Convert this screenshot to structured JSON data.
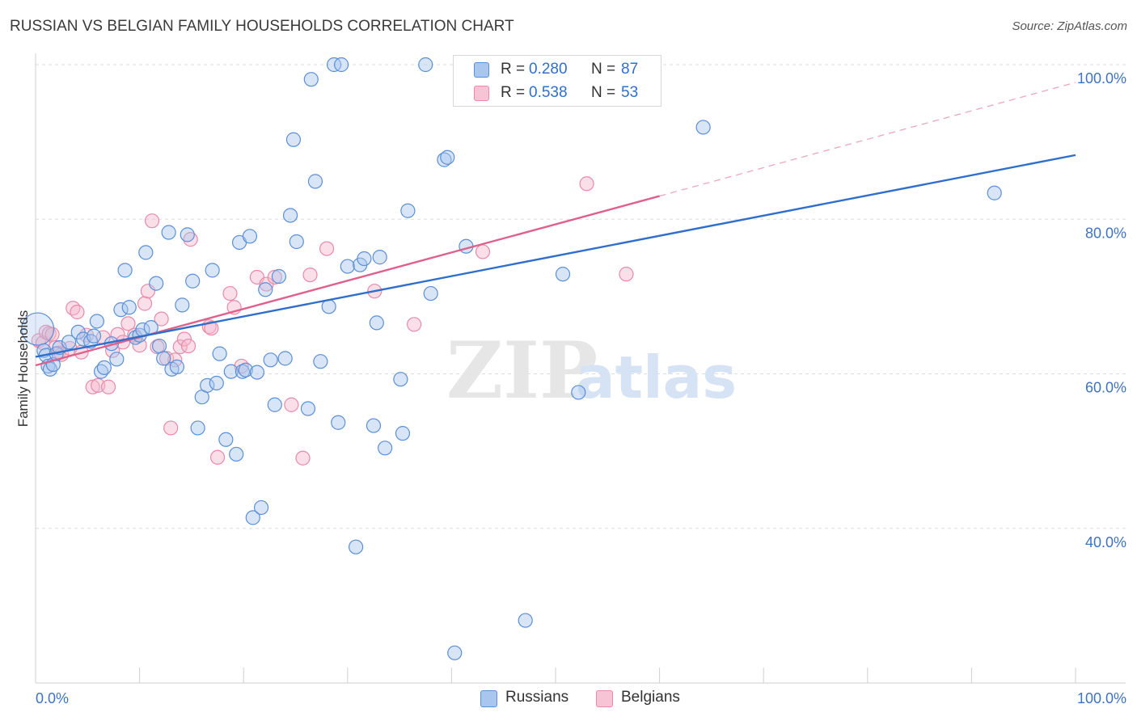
{
  "header": {
    "title": "RUSSIAN VS BELGIAN FAMILY HOUSEHOLDS CORRELATION CHART",
    "source": "Source: ZipAtlas.com"
  },
  "watermark": {
    "zip": "ZIP",
    "atlas": "atlas"
  },
  "legend": {
    "russians": {
      "r_label": "R =",
      "r_value": "0.280",
      "n_label": "N =",
      "n_value": "87"
    },
    "belgians": {
      "r_label": "R =",
      "r_value": "0.538",
      "n_label": "N =",
      "n_value": "53"
    }
  },
  "bottom_legend": {
    "russians": "Russians",
    "belgians": "Belgians"
  },
  "colors": {
    "russians_fill": "#a9c6ee",
    "russians_stroke": "#5b8fd6",
    "russians_line": "#2f6fcb",
    "belgians_fill": "#f6b9cc",
    "belgians_stroke": "#e88aa8",
    "belgians_line": "#e0608c",
    "axis_label": "#3f72c4",
    "grid": "#dddddd"
  },
  "chart_data": {
    "type": "scatter",
    "title": "RUSSIAN VS BELGIAN FAMILY HOUSEHOLDS CORRELATION CHART",
    "xlabel": "",
    "ylabel": "Family Households",
    "xlim": [
      0,
      100
    ],
    "ylim": [
      20,
      100
    ],
    "x_tick_labels": [
      "0.0%",
      "100.0%"
    ],
    "y_ticks": [
      40,
      60,
      80,
      100
    ],
    "y_tick_labels": [
      "40.0%",
      "60.0%",
      "80.0%",
      "100.0%"
    ],
    "grid": true,
    "legend_position": "top-center",
    "series": [
      {
        "name": "Russians",
        "r": 0.28,
        "n": 87,
        "trend": {
          "x0": 0,
          "y0": 62.2,
          "x1": 100,
          "y1": 88.3
        },
        "points": [
          [
            0.2,
            65.8
          ],
          [
            0.8,
            63.0
          ],
          [
            1.0,
            62.4
          ],
          [
            1.2,
            61.0
          ],
          [
            1.4,
            60.6
          ],
          [
            1.7,
            61.2
          ],
          [
            2.0,
            62.6
          ],
          [
            2.3,
            63.4
          ],
          [
            3.2,
            64.1
          ],
          [
            4.1,
            65.4
          ],
          [
            4.6,
            64.5
          ],
          [
            5.3,
            64.2
          ],
          [
            5.6,
            64.9
          ],
          [
            5.9,
            66.8
          ],
          [
            6.3,
            60.3
          ],
          [
            6.6,
            60.8
          ],
          [
            7.3,
            63.9
          ],
          [
            7.8,
            61.9
          ],
          [
            8.2,
            68.3
          ],
          [
            8.6,
            73.4
          ],
          [
            9.0,
            68.6
          ],
          [
            9.6,
            64.7
          ],
          [
            10.0,
            65.0
          ],
          [
            10.3,
            65.7
          ],
          [
            10.6,
            75.7
          ],
          [
            11.1,
            66.0
          ],
          [
            11.6,
            71.7
          ],
          [
            11.9,
            63.6
          ],
          [
            12.3,
            62.0
          ],
          [
            12.8,
            78.3
          ],
          [
            13.1,
            60.6
          ],
          [
            13.6,
            60.9
          ],
          [
            14.1,
            68.9
          ],
          [
            14.6,
            78.0
          ],
          [
            15.1,
            72.0
          ],
          [
            15.6,
            53.0
          ],
          [
            16.0,
            57.0
          ],
          [
            16.5,
            58.5
          ],
          [
            17.0,
            73.4
          ],
          [
            17.4,
            58.8
          ],
          [
            17.7,
            62.6
          ],
          [
            18.3,
            51.5
          ],
          [
            18.8,
            60.3
          ],
          [
            19.3,
            49.6
          ],
          [
            19.6,
            77.0
          ],
          [
            19.9,
            60.3
          ],
          [
            20.2,
            60.5
          ],
          [
            20.6,
            77.8
          ],
          [
            20.9,
            41.4
          ],
          [
            21.3,
            60.2
          ],
          [
            21.7,
            42.7
          ],
          [
            22.1,
            70.9
          ],
          [
            22.6,
            61.8
          ],
          [
            23.0,
            56.0
          ],
          [
            23.4,
            72.6
          ],
          [
            24.0,
            62.0
          ],
          [
            24.5,
            80.5
          ],
          [
            24.8,
            90.3
          ],
          [
            25.1,
            77.1
          ],
          [
            26.2,
            55.5
          ],
          [
            26.5,
            98.1
          ],
          [
            26.9,
            84.9
          ],
          [
            27.4,
            61.6
          ],
          [
            28.2,
            68.7
          ],
          [
            28.7,
            100.0
          ],
          [
            29.1,
            53.7
          ],
          [
            29.4,
            100.0
          ],
          [
            30.0,
            73.9
          ],
          [
            30.8,
            37.6
          ],
          [
            31.2,
            74.1
          ],
          [
            31.6,
            74.9
          ],
          [
            32.5,
            53.3
          ],
          [
            32.8,
            66.6
          ],
          [
            33.1,
            75.1
          ],
          [
            33.6,
            50.4
          ],
          [
            35.1,
            59.3
          ],
          [
            35.3,
            52.3
          ],
          [
            35.8,
            81.1
          ],
          [
            37.5,
            100.0
          ],
          [
            38.0,
            70.4
          ],
          [
            39.3,
            87.7
          ],
          [
            39.6,
            88.0
          ],
          [
            40.3,
            23.9
          ],
          [
            41.4,
            76.5
          ],
          [
            47.1,
            28.1
          ],
          [
            50.7,
            72.9
          ],
          [
            52.2,
            57.6
          ],
          [
            64.2,
            91.9
          ],
          [
            92.2,
            83.4
          ]
        ]
      },
      {
        "name": "Belgians",
        "r": 0.538,
        "n": 53,
        "trend": {
          "x0": 0,
          "y0": 61.1,
          "x1": 60,
          "y1": 83.0,
          "dashed_to_x": 100,
          "dashed_to_y": 97.7
        },
        "points": [
          [
            0.3,
            64.3
          ],
          [
            0.7,
            64.0
          ],
          [
            1.0,
            65.4
          ],
          [
            1.3,
            65.2
          ],
          [
            1.6,
            65.1
          ],
          [
            1.9,
            63.4
          ],
          [
            2.2,
            62.7
          ],
          [
            2.5,
            62.5
          ],
          [
            3.3,
            63.3
          ],
          [
            3.6,
            68.5
          ],
          [
            4.0,
            68.0
          ],
          [
            4.4,
            62.8
          ],
          [
            4.9,
            65.0
          ],
          [
            5.5,
            58.3
          ],
          [
            6.0,
            58.5
          ],
          [
            6.5,
            64.7
          ],
          [
            7.0,
            58.3
          ],
          [
            7.4,
            63.0
          ],
          [
            7.9,
            65.1
          ],
          [
            8.4,
            64.1
          ],
          [
            8.9,
            66.5
          ],
          [
            9.5,
            65.0
          ],
          [
            10.0,
            63.7
          ],
          [
            10.5,
            69.1
          ],
          [
            10.8,
            70.7
          ],
          [
            11.2,
            79.8
          ],
          [
            11.7,
            63.5
          ],
          [
            12.1,
            67.1
          ],
          [
            12.6,
            62.0
          ],
          [
            13.0,
            53.0
          ],
          [
            13.4,
            61.8
          ],
          [
            13.9,
            63.5
          ],
          [
            14.3,
            64.5
          ],
          [
            14.7,
            63.6
          ],
          [
            14.9,
            77.4
          ],
          [
            16.7,
            66.1
          ],
          [
            16.9,
            65.9
          ],
          [
            17.5,
            49.2
          ],
          [
            18.7,
            70.4
          ],
          [
            19.1,
            68.6
          ],
          [
            19.8,
            61.0
          ],
          [
            21.3,
            72.5
          ],
          [
            22.2,
            71.6
          ],
          [
            23.0,
            72.5
          ],
          [
            24.6,
            56.0
          ],
          [
            25.7,
            49.1
          ],
          [
            26.4,
            72.8
          ],
          [
            28.0,
            76.2
          ],
          [
            32.6,
            70.7
          ],
          [
            36.4,
            66.4
          ],
          [
            43.0,
            75.8
          ],
          [
            53.0,
            84.6
          ],
          [
            56.8,
            72.9
          ]
        ]
      }
    ]
  }
}
